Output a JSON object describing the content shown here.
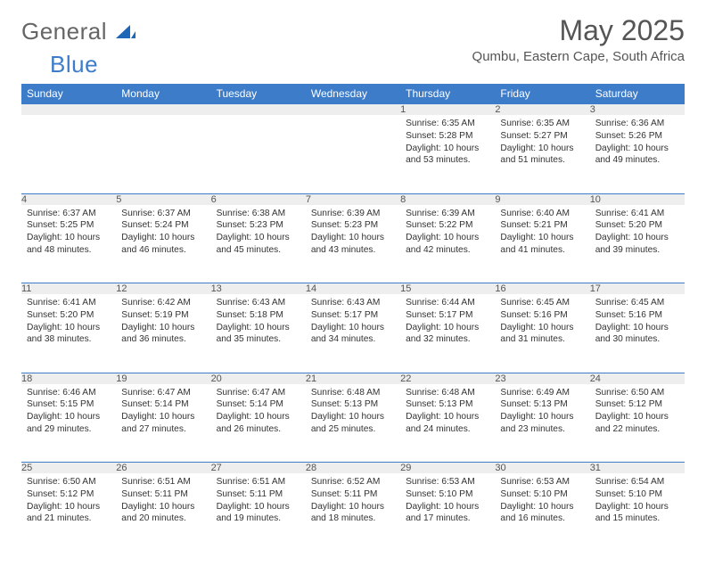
{
  "logo": {
    "part1": "General",
    "part2": "Blue"
  },
  "title": "May 2025",
  "location": "Qumbu, Eastern Cape, South Africa",
  "colors": {
    "header_bg": "#3d7cc9",
    "header_text": "#ffffff",
    "daynum_bg": "#eeeeee",
    "border": "#3d7cc9",
    "text": "#333333",
    "logo_gray": "#666666",
    "logo_blue": "#3d7cc9"
  },
  "weekdays": [
    "Sunday",
    "Monday",
    "Tuesday",
    "Wednesday",
    "Thursday",
    "Friday",
    "Saturday"
  ],
  "weeks": [
    [
      null,
      null,
      null,
      null,
      {
        "day": "1",
        "sunrise": "Sunrise: 6:35 AM",
        "sunset": "Sunset: 5:28 PM",
        "daylight1": "Daylight: 10 hours",
        "daylight2": "and 53 minutes."
      },
      {
        "day": "2",
        "sunrise": "Sunrise: 6:35 AM",
        "sunset": "Sunset: 5:27 PM",
        "daylight1": "Daylight: 10 hours",
        "daylight2": "and 51 minutes."
      },
      {
        "day": "3",
        "sunrise": "Sunrise: 6:36 AM",
        "sunset": "Sunset: 5:26 PM",
        "daylight1": "Daylight: 10 hours",
        "daylight2": "and 49 minutes."
      }
    ],
    [
      {
        "day": "4",
        "sunrise": "Sunrise: 6:37 AM",
        "sunset": "Sunset: 5:25 PM",
        "daylight1": "Daylight: 10 hours",
        "daylight2": "and 48 minutes."
      },
      {
        "day": "5",
        "sunrise": "Sunrise: 6:37 AM",
        "sunset": "Sunset: 5:24 PM",
        "daylight1": "Daylight: 10 hours",
        "daylight2": "and 46 minutes."
      },
      {
        "day": "6",
        "sunrise": "Sunrise: 6:38 AM",
        "sunset": "Sunset: 5:23 PM",
        "daylight1": "Daylight: 10 hours",
        "daylight2": "and 45 minutes."
      },
      {
        "day": "7",
        "sunrise": "Sunrise: 6:39 AM",
        "sunset": "Sunset: 5:23 PM",
        "daylight1": "Daylight: 10 hours",
        "daylight2": "and 43 minutes."
      },
      {
        "day": "8",
        "sunrise": "Sunrise: 6:39 AM",
        "sunset": "Sunset: 5:22 PM",
        "daylight1": "Daylight: 10 hours",
        "daylight2": "and 42 minutes."
      },
      {
        "day": "9",
        "sunrise": "Sunrise: 6:40 AM",
        "sunset": "Sunset: 5:21 PM",
        "daylight1": "Daylight: 10 hours",
        "daylight2": "and 41 minutes."
      },
      {
        "day": "10",
        "sunrise": "Sunrise: 6:41 AM",
        "sunset": "Sunset: 5:20 PM",
        "daylight1": "Daylight: 10 hours",
        "daylight2": "and 39 minutes."
      }
    ],
    [
      {
        "day": "11",
        "sunrise": "Sunrise: 6:41 AM",
        "sunset": "Sunset: 5:20 PM",
        "daylight1": "Daylight: 10 hours",
        "daylight2": "and 38 minutes."
      },
      {
        "day": "12",
        "sunrise": "Sunrise: 6:42 AM",
        "sunset": "Sunset: 5:19 PM",
        "daylight1": "Daylight: 10 hours",
        "daylight2": "and 36 minutes."
      },
      {
        "day": "13",
        "sunrise": "Sunrise: 6:43 AM",
        "sunset": "Sunset: 5:18 PM",
        "daylight1": "Daylight: 10 hours",
        "daylight2": "and 35 minutes."
      },
      {
        "day": "14",
        "sunrise": "Sunrise: 6:43 AM",
        "sunset": "Sunset: 5:17 PM",
        "daylight1": "Daylight: 10 hours",
        "daylight2": "and 34 minutes."
      },
      {
        "day": "15",
        "sunrise": "Sunrise: 6:44 AM",
        "sunset": "Sunset: 5:17 PM",
        "daylight1": "Daylight: 10 hours",
        "daylight2": "and 32 minutes."
      },
      {
        "day": "16",
        "sunrise": "Sunrise: 6:45 AM",
        "sunset": "Sunset: 5:16 PM",
        "daylight1": "Daylight: 10 hours",
        "daylight2": "and 31 minutes."
      },
      {
        "day": "17",
        "sunrise": "Sunrise: 6:45 AM",
        "sunset": "Sunset: 5:16 PM",
        "daylight1": "Daylight: 10 hours",
        "daylight2": "and 30 minutes."
      }
    ],
    [
      {
        "day": "18",
        "sunrise": "Sunrise: 6:46 AM",
        "sunset": "Sunset: 5:15 PM",
        "daylight1": "Daylight: 10 hours",
        "daylight2": "and 29 minutes."
      },
      {
        "day": "19",
        "sunrise": "Sunrise: 6:47 AM",
        "sunset": "Sunset: 5:14 PM",
        "daylight1": "Daylight: 10 hours",
        "daylight2": "and 27 minutes."
      },
      {
        "day": "20",
        "sunrise": "Sunrise: 6:47 AM",
        "sunset": "Sunset: 5:14 PM",
        "daylight1": "Daylight: 10 hours",
        "daylight2": "and 26 minutes."
      },
      {
        "day": "21",
        "sunrise": "Sunrise: 6:48 AM",
        "sunset": "Sunset: 5:13 PM",
        "daylight1": "Daylight: 10 hours",
        "daylight2": "and 25 minutes."
      },
      {
        "day": "22",
        "sunrise": "Sunrise: 6:48 AM",
        "sunset": "Sunset: 5:13 PM",
        "daylight1": "Daylight: 10 hours",
        "daylight2": "and 24 minutes."
      },
      {
        "day": "23",
        "sunrise": "Sunrise: 6:49 AM",
        "sunset": "Sunset: 5:13 PM",
        "daylight1": "Daylight: 10 hours",
        "daylight2": "and 23 minutes."
      },
      {
        "day": "24",
        "sunrise": "Sunrise: 6:50 AM",
        "sunset": "Sunset: 5:12 PM",
        "daylight1": "Daylight: 10 hours",
        "daylight2": "and 22 minutes."
      }
    ],
    [
      {
        "day": "25",
        "sunrise": "Sunrise: 6:50 AM",
        "sunset": "Sunset: 5:12 PM",
        "daylight1": "Daylight: 10 hours",
        "daylight2": "and 21 minutes."
      },
      {
        "day": "26",
        "sunrise": "Sunrise: 6:51 AM",
        "sunset": "Sunset: 5:11 PM",
        "daylight1": "Daylight: 10 hours",
        "daylight2": "and 20 minutes."
      },
      {
        "day": "27",
        "sunrise": "Sunrise: 6:51 AM",
        "sunset": "Sunset: 5:11 PM",
        "daylight1": "Daylight: 10 hours",
        "daylight2": "and 19 minutes."
      },
      {
        "day": "28",
        "sunrise": "Sunrise: 6:52 AM",
        "sunset": "Sunset: 5:11 PM",
        "daylight1": "Daylight: 10 hours",
        "daylight2": "and 18 minutes."
      },
      {
        "day": "29",
        "sunrise": "Sunrise: 6:53 AM",
        "sunset": "Sunset: 5:10 PM",
        "daylight1": "Daylight: 10 hours",
        "daylight2": "and 17 minutes."
      },
      {
        "day": "30",
        "sunrise": "Sunrise: 6:53 AM",
        "sunset": "Sunset: 5:10 PM",
        "daylight1": "Daylight: 10 hours",
        "daylight2": "and 16 minutes."
      },
      {
        "day": "31",
        "sunrise": "Sunrise: 6:54 AM",
        "sunset": "Sunset: 5:10 PM",
        "daylight1": "Daylight: 10 hours",
        "daylight2": "and 15 minutes."
      }
    ]
  ]
}
